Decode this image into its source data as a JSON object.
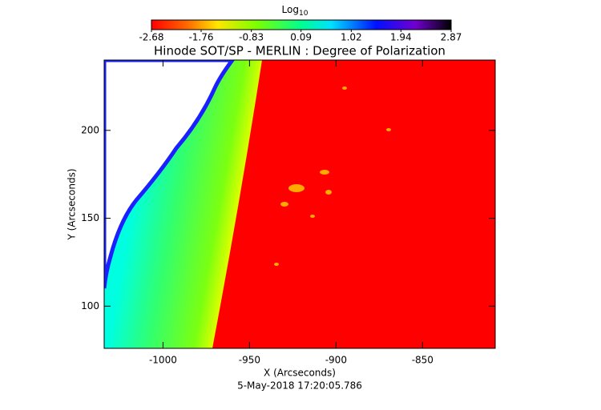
{
  "chart_data": {
    "type": "image",
    "title": "Hinode SOT/SP - MERLIN : Degree of Polarization",
    "colorbar_label": "Log",
    "colorbar_label_sub": "10",
    "clim": [
      -2.68,
      2.87
    ],
    "cticks": [
      -2.68,
      -1.76,
      -0.83,
      0.09,
      1.02,
      1.94,
      2.87
    ],
    "x_label": "X (Arcseconds)",
    "y_label": "Y (Arcseconds)",
    "footer": "5-May-2018 17:20:05.786",
    "xlim": [
      -1034,
      -808
    ],
    "ylim": [
      76,
      240
    ],
    "xticks": [
      -1000,
      -950,
      -900,
      -850
    ],
    "yticks": [
      100,
      150,
      200
    ]
  }
}
